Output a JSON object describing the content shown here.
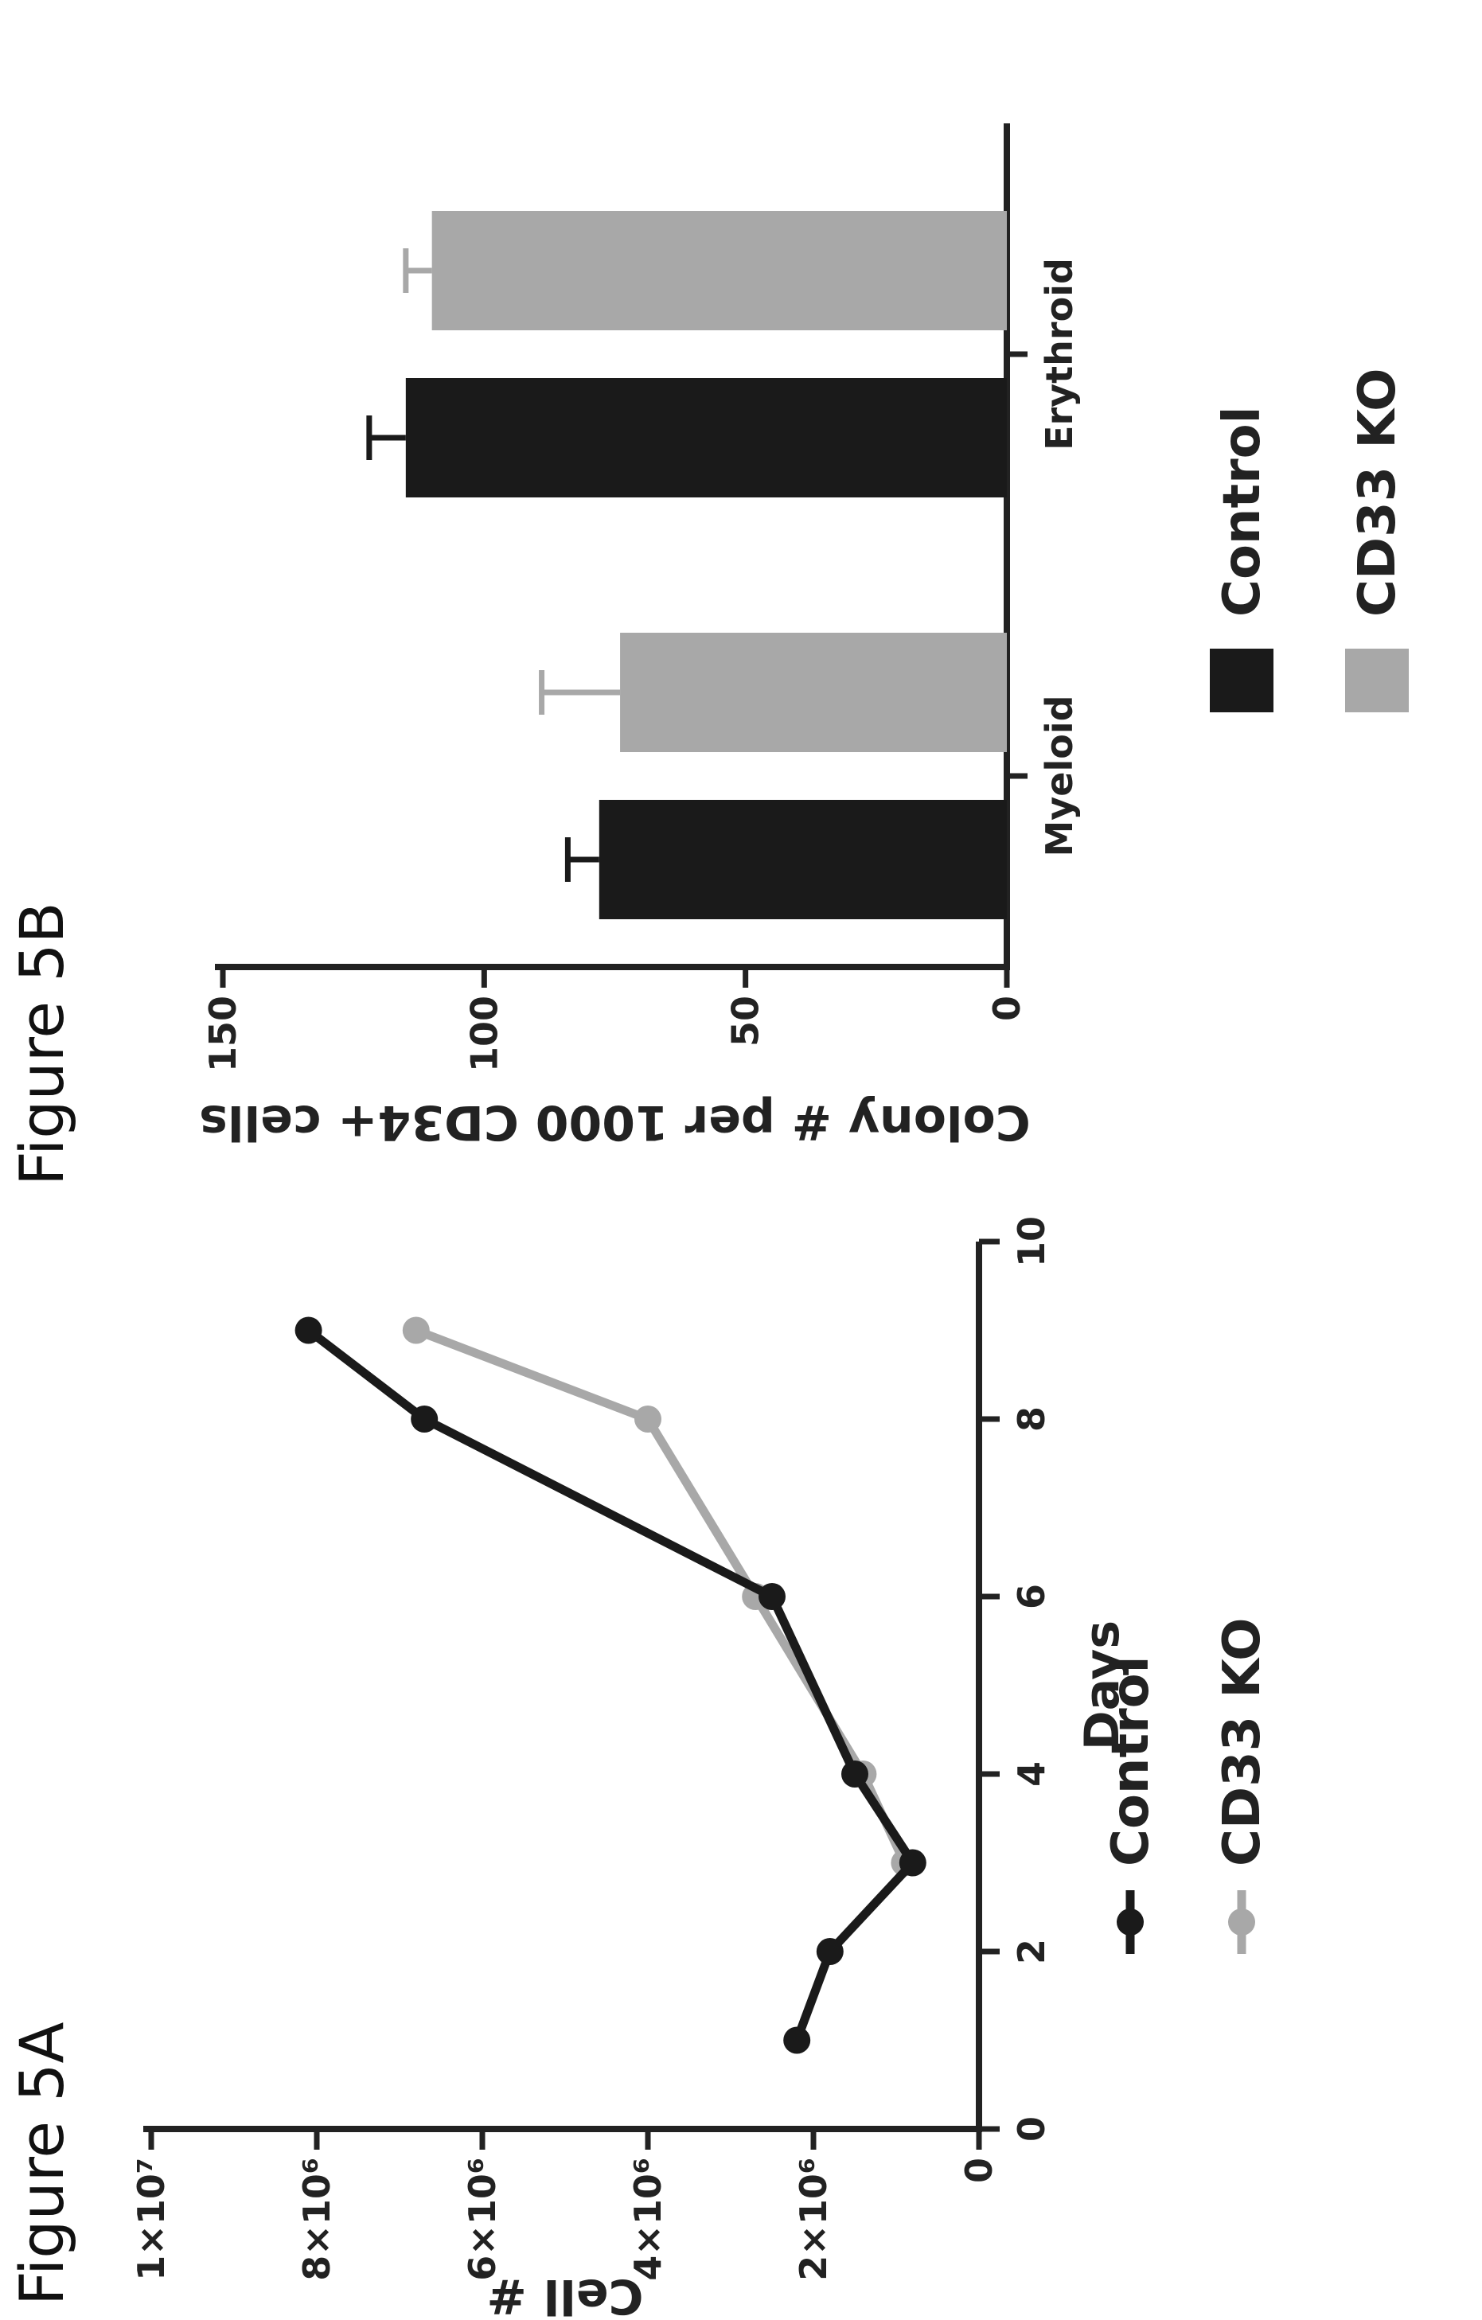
{
  "figure_a_label": "Figure 5A",
  "figure_b_label": "Figure 5B",
  "colors": {
    "control": "#1a1a1a",
    "cd33_ko": "#a8a8a8",
    "axis": "#222222"
  },
  "chart_data": [
    {
      "type": "line",
      "title": "",
      "xlabel": "Days",
      "ylabel": "Cell #",
      "xlim": [
        0,
        10
      ],
      "ylim": [
        0,
        10000000
      ],
      "x_ticks": [
        "0",
        "2",
        "4",
        "6",
        "8",
        "10"
      ],
      "y_ticks": [
        "0",
        "2×10⁶",
        "4×10⁶",
        "6×10⁶",
        "8×10⁶",
        "1×10⁷"
      ],
      "grid": false,
      "legend_position": "bottom",
      "series": [
        {
          "name": "Control",
          "x": [
            1,
            2,
            3,
            4,
            6,
            8,
            9
          ],
          "y": [
            2200000,
            1800000,
            800000,
            1500000,
            2500000,
            6700000,
            8100000
          ]
        },
        {
          "name": "CD33 KO",
          "x": [
            3,
            4,
            6,
            8,
            9
          ],
          "y": [
            900000,
            1400000,
            2700000,
            4000000,
            6800000
          ]
        }
      ]
    },
    {
      "type": "bar",
      "title": "",
      "xlabel": "",
      "ylabel": "Colony # per 1000 CD34+ cells",
      "ylim": [
        0,
        150
      ],
      "y_ticks": [
        "0",
        "50",
        "100",
        "150"
      ],
      "categories": [
        "Myeloid",
        "Erythroid"
      ],
      "grid": false,
      "legend_position": "bottom",
      "series": [
        {
          "name": "Control",
          "values": [
            78,
            115
          ],
          "errors": [
            6,
            7
          ]
        },
        {
          "name": "CD33 KO",
          "values": [
            74,
            110
          ],
          "errors": [
            15,
            5
          ]
        }
      ]
    }
  ]
}
